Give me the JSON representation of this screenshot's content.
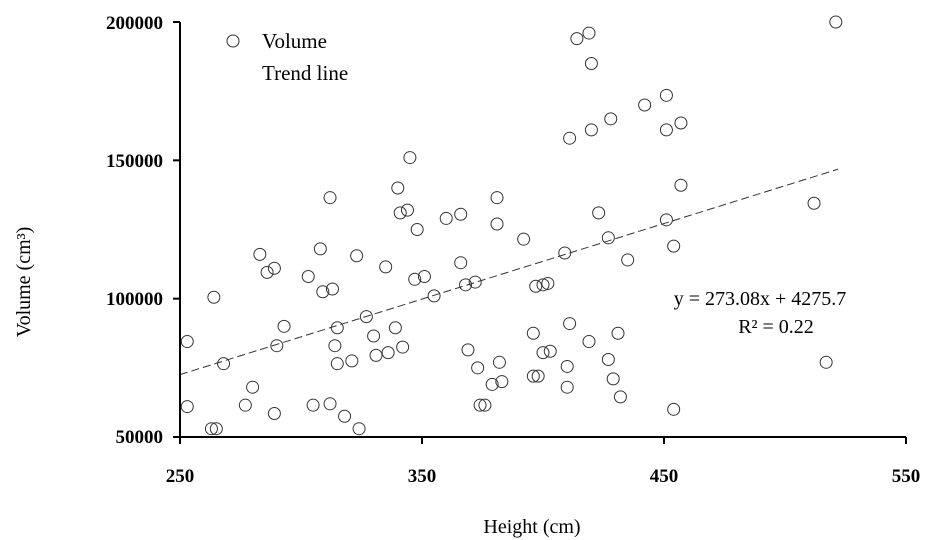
{
  "chart_data": {
    "type": "scatter",
    "xlabel": "Height (cm)",
    "ylabel": "Volume (cm³)",
    "xlim": [
      250,
      550
    ],
    "ylim": [
      50000,
      200000
    ],
    "xticks": [
      "250",
      "350",
      "450",
      "550"
    ],
    "yticks": [
      "50000",
      "100000",
      "150000",
      "200000"
    ],
    "legend": {
      "placement": "top-left",
      "entries": [
        "Volume",
        "Trend line"
      ]
    },
    "series": [
      {
        "name": "Volume",
        "marker": "open-circle",
        "points": [
          [
            253,
            84500
          ],
          [
            253,
            61000
          ],
          [
            263,
            53000
          ],
          [
            265,
            53000
          ],
          [
            264,
            100500
          ],
          [
            268,
            76500
          ],
          [
            277,
            61500
          ],
          [
            280,
            68000
          ],
          [
            283,
            116000
          ],
          [
            286,
            109500
          ],
          [
            289,
            111000
          ],
          [
            289,
            58500
          ],
          [
            290,
            83000
          ],
          [
            293,
            90000
          ],
          [
            303,
            108000
          ],
          [
            305,
            61500
          ],
          [
            308,
            118000
          ],
          [
            309,
            102500
          ],
          [
            312,
            136500
          ],
          [
            312,
            62000
          ],
          [
            313,
            103500
          ],
          [
            314,
            83000
          ],
          [
            315,
            89500
          ],
          [
            315,
            76500
          ],
          [
            318,
            57500
          ],
          [
            321,
            77500
          ],
          [
            323,
            115500
          ],
          [
            324,
            53000
          ],
          [
            327,
            93500
          ],
          [
            330,
            86500
          ],
          [
            331,
            79500
          ],
          [
            335,
            111500
          ],
          [
            336,
            80500
          ],
          [
            339,
            89500
          ],
          [
            340,
            140000
          ],
          [
            341,
            131000
          ],
          [
            342,
            82500
          ],
          [
            344,
            132000
          ],
          [
            345,
            151000
          ],
          [
            347,
            107000
          ],
          [
            348,
            125000
          ],
          [
            351,
            108000
          ],
          [
            355,
            101000
          ],
          [
            360,
            129000
          ],
          [
            366,
            130500
          ],
          [
            366,
            113000
          ],
          [
            368,
            105000
          ],
          [
            369,
            81500
          ],
          [
            372,
            106000
          ],
          [
            373,
            75000
          ],
          [
            374,
            61500
          ],
          [
            376,
            61500
          ],
          [
            379,
            69000
          ],
          [
            381,
            127000
          ],
          [
            381,
            136500
          ],
          [
            382,
            77000
          ],
          [
            383,
            70000
          ],
          [
            392,
            121500
          ],
          [
            396,
            87500
          ],
          [
            396,
            72000
          ],
          [
            397,
            104500
          ],
          [
            398,
            72000
          ],
          [
            400,
            80500
          ],
          [
            400,
            105000
          ],
          [
            402,
            105500
          ],
          [
            403,
            81000
          ],
          [
            409,
            116500
          ],
          [
            410,
            68000
          ],
          [
            410,
            75500
          ],
          [
            411,
            158000
          ],
          [
            411,
            91000
          ],
          [
            414,
            194000
          ],
          [
            419,
            196000
          ],
          [
            420,
            185000
          ],
          [
            419,
            84500
          ],
          [
            420,
            161000
          ],
          [
            423,
            131000
          ],
          [
            427,
            78000
          ],
          [
            427,
            122000
          ],
          [
            428,
            165000
          ],
          [
            429,
            71000
          ],
          [
            431,
            87500
          ],
          [
            432,
            64500
          ],
          [
            435,
            114000
          ],
          [
            442,
            170000
          ],
          [
            451,
            173500
          ],
          [
            451,
            161000
          ],
          [
            451,
            128500
          ],
          [
            454,
            60000
          ],
          [
            454,
            119000
          ],
          [
            457,
            163500
          ],
          [
            457,
            141000
          ],
          [
            512,
            134500
          ],
          [
            517,
            77000
          ],
          [
            521,
            200000
          ]
        ]
      },
      {
        "name": "Trend line",
        "type": "line",
        "style": "dashed",
        "x": [
          250,
          522
        ],
        "equation": "y = 273.08x + 4275.7",
        "r2_label": "R² = 0.22"
      }
    ]
  }
}
